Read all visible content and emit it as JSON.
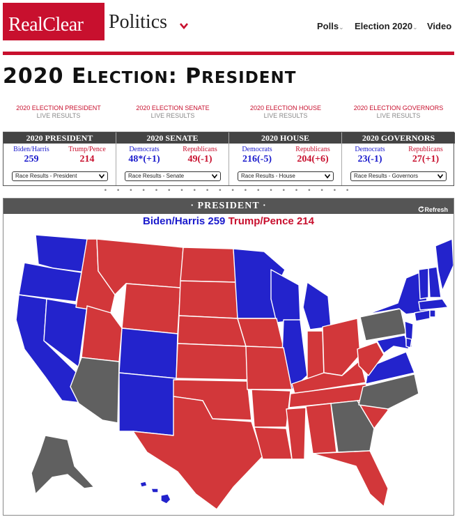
{
  "brand": {
    "part1": "RealClear",
    "part2": "Politics"
  },
  "nav": [
    {
      "label": "Polls",
      "caret": "⌄"
    },
    {
      "label": "Election 2020",
      "caret": "⌄"
    },
    {
      "label": "Video",
      "caret": ""
    }
  ],
  "page": {
    "title_big1": "2020 E",
    "title_small1": "LECTION",
    "title_colon": ": P",
    "title_small2": "RESIDENT"
  },
  "links": [
    {
      "line1": "2020 ELECTION PRESIDENT",
      "line2": "LIVE RESULTS"
    },
    {
      "line1": "2020 ELECTION SENATE",
      "line2": "LIVE RESULTS"
    },
    {
      "line1": "2020 ELECTION HOUSE",
      "line2": "LIVE RESULTS"
    },
    {
      "line1": "2020 ELECTION GOVERNORS",
      "line2": "LIVE RESULTS"
    }
  ],
  "results": [
    {
      "header": "2020 PRESIDENT",
      "left_name": "Biden/Harris",
      "left_value": "259",
      "right_name": "Trump/Pence",
      "right_value": "214",
      "select": "Race Results - President"
    },
    {
      "header": "2020 SENATE",
      "left_name": "Democrats",
      "left_value": "48*(+1)",
      "right_name": "Republicans",
      "right_value": "49(-1)",
      "select": "Race Results - Senate"
    },
    {
      "header": "2020 HOUSE",
      "left_name": "Democrats",
      "left_value": "216(-5)",
      "right_name": "Republicans",
      "right_value": "204(+6)",
      "select": "Race Results - House"
    },
    {
      "header": "2020 GOVERNORS",
      "left_name": "Democrats",
      "left_value": "23(-1)",
      "right_name": "Republicans",
      "right_value": "27(+1)",
      "select": "Race Results - Governors"
    }
  ],
  "dots": "• • • • • • • • • • • • • • • • • • • •",
  "panel": {
    "header": "· PRESIDENT ·",
    "refresh_icon": "refresh-icon",
    "refresh_label": "Refresh",
    "biden_label": "Biden/Harris 259",
    "trump_label": "Trump/Pence 214"
  },
  "colors": {
    "dem": "#2323cc",
    "rep": "#d2373a",
    "undecided": "#606060",
    "brand": "#c8102e"
  }
}
